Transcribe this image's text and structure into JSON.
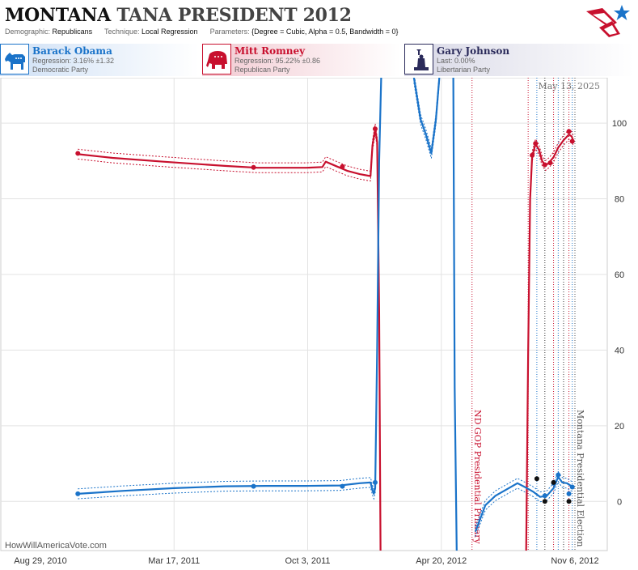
{
  "header": {
    "title_state": "MONTANA",
    "title_rest": "TANA PRESIDENT 2012",
    "demographic_key": "Demographic:",
    "demographic_val": "Republicans",
    "technique_key": "Technique:",
    "technique_val": "Local Regression",
    "parameters_key": "Parameters:",
    "parameters_val": "{Degree = Cubic, Alpha = 0.5, Bandwidth = 0}"
  },
  "candidates": {
    "obama": {
      "name": "Barack Obama",
      "line2": "Regression: 3.16% ±1.32",
      "line3": "Democratic Party",
      "color": "#1a73c9",
      "icon": "donkey-icon"
    },
    "romney": {
      "name": "Mitt Romney",
      "line2": "Regression: 95.22% ±0.86",
      "line3": "Republican Party",
      "color": "#c8102e",
      "icon": "elephant-icon"
    },
    "johnson": {
      "name": "Gary Johnson",
      "line2": "Last: 0.00%",
      "line3": "Libertarian Party",
      "color": "#2a2a5a",
      "icon": "liberty-statue-icon"
    }
  },
  "chart_data": {
    "type": "line",
    "date_stamp": "May 13, 2025",
    "watermark": "HowWillAmericaVote.com",
    "x_ticks": [
      "Aug 29, 2010",
      "Mar 17, 2011",
      "Oct 3, 2011",
      "Apr 20, 2012",
      "Nov 6, 2012"
    ],
    "y_ticks": [
      "0",
      "20",
      "40",
      "60",
      "80",
      "100"
    ],
    "ylim": [
      -13,
      112
    ],
    "annotations": [
      {
        "label": "ND GOP Presidential Primary",
        "date": "2012-06-05",
        "color": "#c8102e"
      },
      {
        "label": "Montana Presidential Election",
        "date": "2012-11-06",
        "color": "#555555"
      }
    ],
    "series": [
      {
        "name": "Mitt Romney",
        "color": "#c8102e",
        "line": [
          [
            "2010-10-24",
            91.8
          ],
          [
            "2010-12-15",
            90.8
          ],
          [
            "2011-03-01",
            89.8
          ],
          [
            "2011-06-01",
            88.7
          ],
          [
            "2011-07-20",
            88.2
          ],
          [
            "2011-10-01",
            88.2
          ],
          [
            "2011-10-25",
            88.4
          ],
          [
            "2011-10-30",
            89.8
          ],
          [
            "2011-11-15",
            88.6
          ],
          [
            "2011-12-01",
            87.4
          ],
          [
            "2011-12-20",
            86.5
          ],
          [
            "2012-01-05",
            86.0
          ],
          [
            "2012-01-08",
            94
          ],
          [
            "2012-01-12",
            98.5
          ],
          [
            "2012-01-15",
            95
          ],
          [
            "2012-01-18",
            50
          ],
          [
            "2012-01-20",
            -13
          ]
        ],
        "line_b": [
          [
            "2012-08-25",
            -13
          ],
          [
            "2012-08-28",
            40
          ],
          [
            "2012-08-31",
            80
          ],
          [
            "2012-09-03",
            91.2
          ],
          [
            "2012-09-08",
            94.5
          ],
          [
            "2012-09-13",
            93
          ],
          [
            "2012-09-18",
            90
          ],
          [
            "2012-09-23",
            88.8
          ],
          [
            "2012-09-28",
            89.5
          ],
          [
            "2012-10-05",
            91
          ],
          [
            "2012-10-12",
            93.5
          ],
          [
            "2012-10-20",
            95.5
          ],
          [
            "2012-10-28",
            97
          ],
          [
            "2012-11-01",
            96.5
          ],
          [
            "2012-11-04",
            95.2
          ]
        ],
        "points": [
          [
            "2010-10-24",
            92
          ],
          [
            "2011-07-14",
            88.3
          ],
          [
            "2011-11-24",
            88.5
          ],
          [
            "2012-01-12",
            98.5
          ],
          [
            "2012-09-03",
            91.5
          ],
          [
            "2012-09-08",
            94.6
          ],
          [
            "2012-09-22",
            89
          ],
          [
            "2012-09-30",
            89.5
          ],
          [
            "2012-10-28",
            97.8
          ],
          [
            "2012-11-02",
            95.2
          ]
        ]
      },
      {
        "name": "Barack Obama",
        "color": "#1a73c9",
        "line": [
          [
            "2010-10-24",
            2.0
          ],
          [
            "2011-01-01",
            2.8
          ],
          [
            "2011-03-17",
            3.5
          ],
          [
            "2011-06-01",
            4.0
          ],
          [
            "2011-08-01",
            4.1
          ],
          [
            "2011-10-01",
            4.1
          ],
          [
            "2011-11-20",
            4.2
          ],
          [
            "2011-12-20",
            4.8
          ],
          [
            "2012-01-05",
            5.0
          ],
          [
            "2012-01-08",
            3.0
          ],
          [
            "2012-01-10",
            2.0
          ],
          [
            "2012-01-12",
            3.5
          ],
          [
            "2012-01-15",
            40
          ],
          [
            "2012-01-18",
            90
          ],
          [
            "2012-01-21",
            112
          ]
        ],
        "line_b": [
          [
            "2012-03-10",
            112
          ],
          [
            "2012-03-20",
            101
          ],
          [
            "2012-03-28",
            97
          ],
          [
            "2012-04-05",
            92
          ],
          [
            "2012-04-12",
            101
          ],
          [
            "2012-04-17",
            112
          ]
        ],
        "line_c": [
          [
            "2012-05-08",
            112
          ],
          [
            "2012-05-10",
            30
          ],
          [
            "2012-05-13",
            -13
          ]
        ],
        "line_d": [
          [
            "2012-06-10",
            -8
          ],
          [
            "2012-06-25",
            -1
          ],
          [
            "2012-07-10",
            1.5
          ],
          [
            "2012-07-30",
            3.5
          ],
          [
            "2012-08-12",
            4.8
          ],
          [
            "2012-08-25",
            3.6
          ],
          [
            "2012-09-05",
            2.5
          ],
          [
            "2012-09-15",
            1.2
          ],
          [
            "2012-09-25",
            1.5
          ],
          [
            "2012-10-05",
            3.5
          ],
          [
            "2012-10-12",
            6.5
          ],
          [
            "2012-10-18",
            5.0
          ],
          [
            "2012-10-25",
            4.8
          ],
          [
            "2012-11-01",
            4.0
          ]
        ],
        "points": [
          [
            "2010-10-24",
            2.0
          ],
          [
            "2011-07-14",
            4.0
          ],
          [
            "2011-11-24",
            4.0
          ],
          [
            "2012-01-12",
            5.0
          ],
          [
            "2012-09-22",
            1.5
          ],
          [
            "2012-10-05",
            4.8
          ],
          [
            "2012-10-12",
            7.0
          ],
          [
            "2012-10-28",
            2.0
          ],
          [
            "2012-11-02",
            3.8
          ]
        ]
      },
      {
        "name": "Gary Johnson",
        "color": "#111111",
        "points": [
          [
            "2012-09-10",
            6.0
          ],
          [
            "2012-09-22",
            0.0
          ],
          [
            "2012-10-05",
            5.0
          ],
          [
            "2012-10-28",
            0.0
          ]
        ]
      }
    ]
  }
}
